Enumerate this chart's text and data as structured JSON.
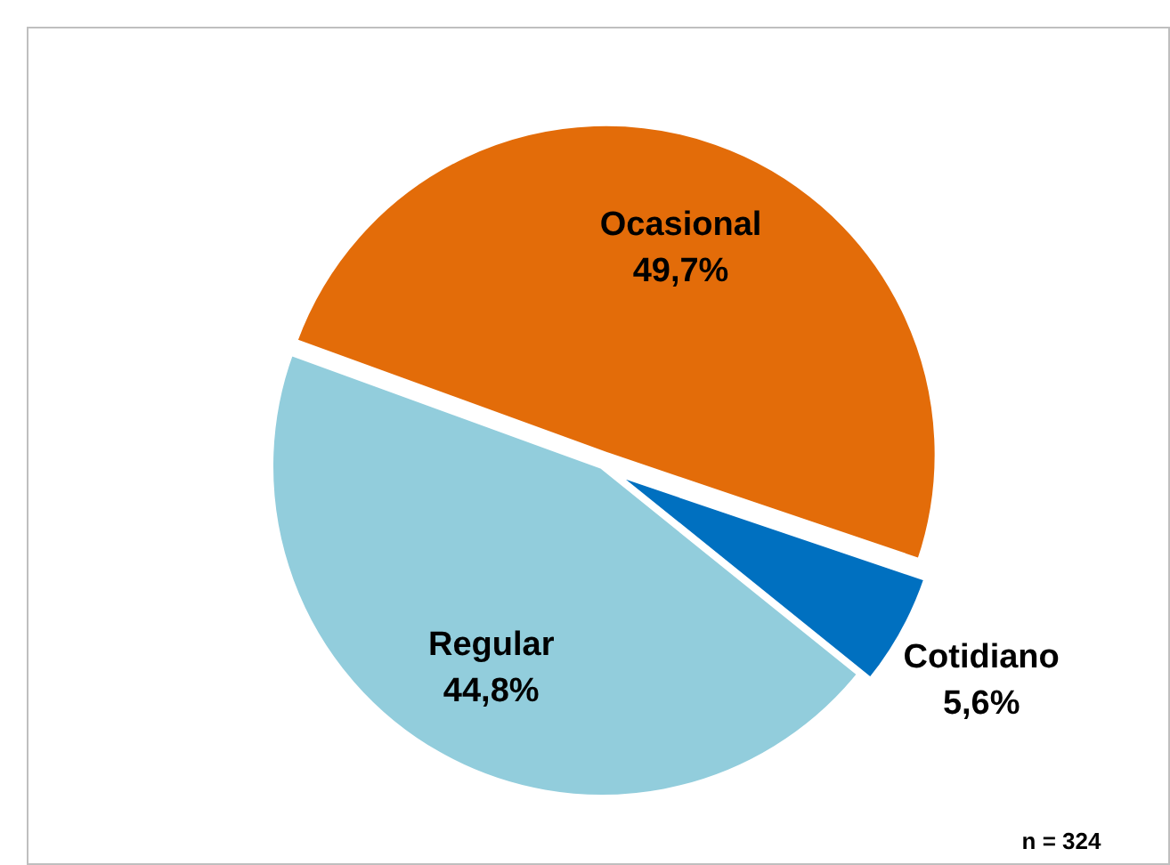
{
  "chart_data": {
    "type": "pie",
    "categories": [
      "Ocasional",
      "Cotidiano",
      "Regular"
    ],
    "values": [
      49.7,
      5.6,
      44.8
    ],
    "colors": [
      "#e36c09",
      "#0070c0",
      "#92cddc"
    ],
    "value_labels": [
      "49,7%",
      "5,6%",
      "44,8%"
    ],
    "annotations": [
      "n = 324"
    ]
  }
}
